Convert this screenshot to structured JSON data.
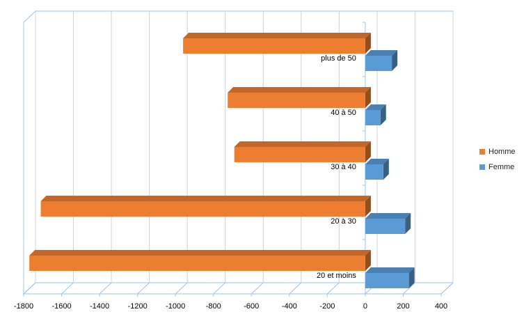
{
  "chart_data": {
    "type": "bar",
    "orientation": "horizontal",
    "style": "3d-clustered-bar",
    "title": "",
    "xlabel": "",
    "ylabel": "",
    "categories": [
      "20 et moins",
      "20 à 30",
      "30 à 40",
      "40 à 50",
      "plus de 50"
    ],
    "series": [
      {
        "name": "Homme",
        "color": "#ed7d31",
        "values": [
          -1770,
          -1710,
          -690,
          -725,
          -960
        ]
      },
      {
        "name": "Femme",
        "color": "#5b9bd5",
        "values": [
          230,
          210,
          95,
          80,
          140
        ]
      }
    ],
    "xlim": [
      -1800,
      400
    ],
    "xticks": [
      -1800,
      -1600,
      -1400,
      -1200,
      -1000,
      -800,
      -600,
      -400,
      -200,
      0,
      200,
      400
    ],
    "xtick_labels": [
      "-1800",
      "-1600",
      "-1400",
      "-1200",
      "-1000",
      "-800",
      "-600",
      "-400",
      "-200",
      "0",
      "200",
      "400"
    ],
    "grid": true,
    "legend_position": "right"
  }
}
